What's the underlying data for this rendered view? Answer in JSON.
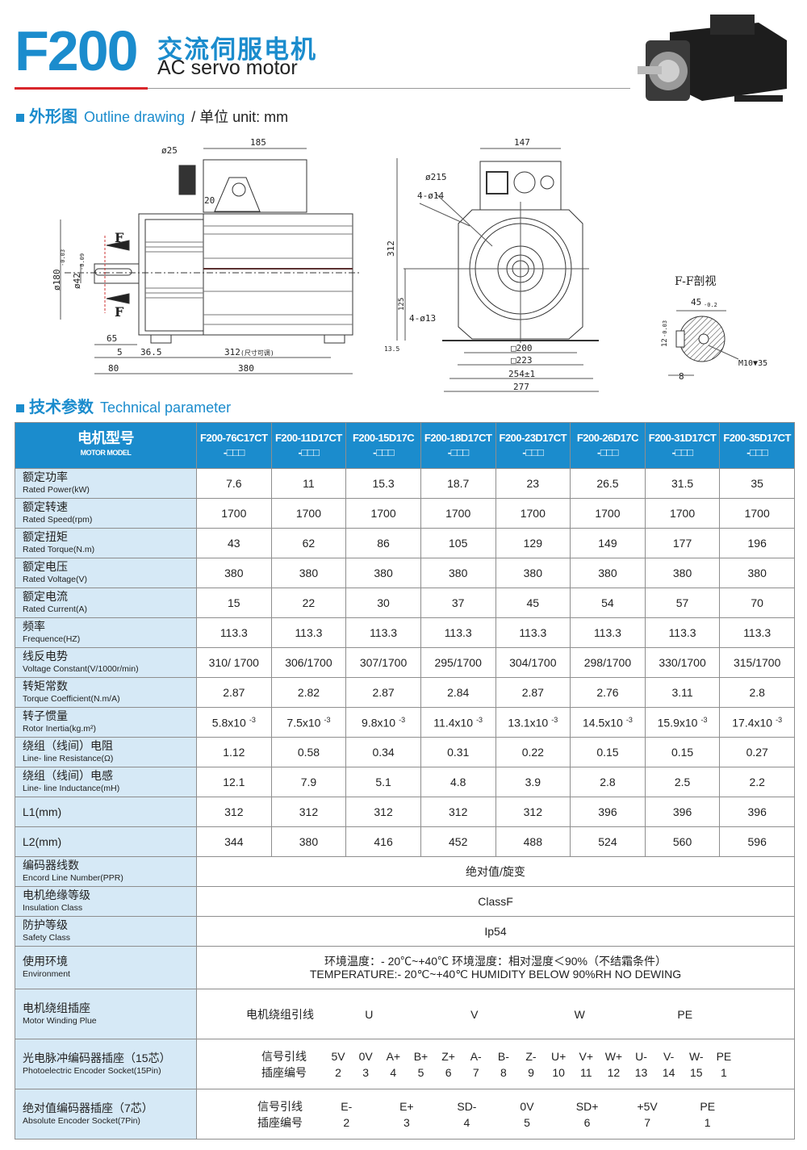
{
  "header": {
    "model": "F200",
    "title_cn": "交流伺服电机",
    "title_en": "AC servo motor"
  },
  "outline": {
    "title_cn": "外形图",
    "title_en": "Outline drawing",
    "unit": "/ 单位 unit: mm",
    "side_dims": [
      "185",
      "ø25",
      "20",
      "F",
      "F",
      "ø180",
      "-0.03",
      "ø42",
      "-0.09",
      "65",
      "5",
      "36.5",
      "312",
      "(尺寸可调)",
      "80",
      "380"
    ],
    "front_dims": [
      "147",
      "ø215",
      "4-ø14",
      "312",
      "125",
      "4-ø13",
      "13.5",
      "□200",
      "□223",
      "254±1",
      "277"
    ],
    "section": {
      "title": "F-F剖视",
      "width": "45",
      "tol": "-0.2",
      "key": "12",
      "key_tol": "-0.03",
      "keyw": "8",
      "thread": "M10▼35"
    }
  },
  "tech": {
    "title_cn": "技术参数",
    "title_en": "Technical parameter"
  },
  "table": {
    "head": {
      "cn": "电机型号",
      "en": "MOTOR MODEL"
    },
    "models": [
      [
        "F200-76C17CT",
        "-□□□"
      ],
      [
        "F200-11D17CT",
        "-□□□"
      ],
      [
        "F200-15D17C",
        "-□□□"
      ],
      [
        "F200-18D17CT",
        "-□□□"
      ],
      [
        "F200-23D17CT",
        "-□□□"
      ],
      [
        "F200-26D17C",
        "-□□□"
      ],
      [
        "F200-31D17CT",
        "-□□□"
      ],
      [
        "F200-35D17CT",
        "-□□□"
      ]
    ],
    "rows": [
      {
        "cn": "额定功率",
        "en": "Rated Power(kW)",
        "v": [
          "7.6",
          "11",
          "15.3",
          "18.7",
          "23",
          "26.5",
          "31.5",
          "35"
        ]
      },
      {
        "cn": "额定转速",
        "en": "Rated Speed(rpm)",
        "v": [
          "1700",
          "1700",
          "1700",
          "1700",
          "1700",
          "1700",
          "1700",
          "1700"
        ]
      },
      {
        "cn": "额定扭矩",
        "en": "Rated Torque(N.m)",
        "v": [
          "43",
          "62",
          "86",
          "105",
          "129",
          "149",
          "177",
          "196"
        ]
      },
      {
        "cn": "额定电压",
        "en": "Rated Voltage(V)",
        "v": [
          "380",
          "380",
          "380",
          "380",
          "380",
          "380",
          "380",
          "380"
        ]
      },
      {
        "cn": "额定电流",
        "en": "Rated Current(A)",
        "v": [
          "15",
          "22",
          "30",
          "37",
          "45",
          "54",
          "57",
          "70"
        ]
      },
      {
        "cn": "频率",
        "en": "Frequence(HZ)",
        "v": [
          "113.3",
          "113.3",
          "113.3",
          "113.3",
          "113.3",
          "113.3",
          "113.3",
          "113.3"
        ]
      },
      {
        "cn": "线反电势",
        "en": "Voltage Constant(V/1000r/min)",
        "v": [
          "310/ 1700",
          "306/1700",
          "307/1700",
          "295/1700",
          "304/1700",
          "298/1700",
          "330/1700",
          "315/1700"
        ]
      },
      {
        "cn": "转矩常数",
        "en": "Torque Coefficient(N.m/A)",
        "v": [
          "2.87",
          "2.82",
          "2.87",
          "2.84",
          "2.87",
          "2.76",
          "3.11",
          "2.8"
        ]
      },
      {
        "cn": "转子惯量",
        "en": "Rotor Inertia(kg.m²)",
        "v": [
          "5.8x10",
          "7.5x10",
          "9.8x10",
          "11.4x10",
          "13.1x10",
          "14.5x10",
          "15.9x10",
          "17.4x10"
        ],
        "exp": "-3"
      },
      {
        "cn": "绕组（线间）电阻",
        "en": "Line- line Resistance(Ω)",
        "v": [
          "1.12",
          "0.58",
          "0.34",
          "0.31",
          "0.22",
          "0.15",
          "0.15",
          "0.27"
        ]
      },
      {
        "cn": "绕组（线间）电感",
        "en": "Line- line Inductance(mH)",
        "v": [
          "12.1",
          "7.9",
          "5.1",
          "4.8",
          "3.9",
          "2.8",
          "2.5",
          "2.2"
        ]
      },
      {
        "cn": "L1(mm)",
        "en": "",
        "v": [
          "312",
          "312",
          "312",
          "312",
          "312",
          "396",
          "396",
          "396"
        ]
      },
      {
        "cn": "L2(mm)",
        "en": "",
        "v": [
          "344",
          "380",
          "416",
          "452",
          "488",
          "524",
          "560",
          "596"
        ]
      }
    ],
    "span_rows": [
      {
        "cn": "编码器线数",
        "en": "Encord Line Number(PPR)",
        "text": [
          "绝对值/旋变"
        ]
      },
      {
        "cn": "电机绝缘等级",
        "en": "Insulation Class",
        "text": [
          "ClassF"
        ]
      },
      {
        "cn": "防护等级",
        "en": "Safety Class",
        "text": [
          "Ip54"
        ]
      },
      {
        "cn": "使用环境",
        "en": "Environment",
        "text": [
          "环境温度：- 20℃~+40℃  环境湿度：相对湿度＜90%（不结霜条件）",
          "TEMPERATURE:- 20℃~+40℃   HUMIDITY  BELOW 90%RH NO DEWING"
        ]
      }
    ],
    "winding": {
      "cn": "电机绕组插座",
      "en": "Motor Winding Plue",
      "label": "电机绕组引线",
      "pins": [
        "U",
        "V",
        "W",
        "PE"
      ]
    },
    "photo": {
      "cn": "光电脉冲编码器插座（15芯）",
      "en": "Photoelectric Encoder Socket(15Pin)",
      "label1": "信号引线",
      "label2": "插座编号",
      "signals": [
        "5V",
        "0V",
        "A+",
        "B+",
        "Z+",
        "A-",
        "B-",
        "Z-",
        "U+",
        "V+",
        "W+",
        "U-",
        "V-",
        "W-",
        "PE"
      ],
      "numbers": [
        "2",
        "3",
        "4",
        "5",
        "6",
        "7",
        "8",
        "9",
        "10",
        "11",
        "12",
        "13",
        "14",
        "15",
        "1"
      ]
    },
    "absolute": {
      "cn": "绝对值编码器插座（7芯）",
      "en": "Absolute Encoder Socket(7Pin)",
      "label1": "信号引线",
      "label2": "插座编号",
      "signals": [
        "E-",
        "E+",
        "SD-",
        "0V",
        "SD+",
        "+5V",
        "PE"
      ],
      "numbers": [
        "2",
        "3",
        "4",
        "5",
        "6",
        "7",
        "1"
      ]
    }
  },
  "colors": {
    "brand": "#1b8ccd",
    "label_bg": "#d6e9f6",
    "accent_red": "#d9262b"
  }
}
